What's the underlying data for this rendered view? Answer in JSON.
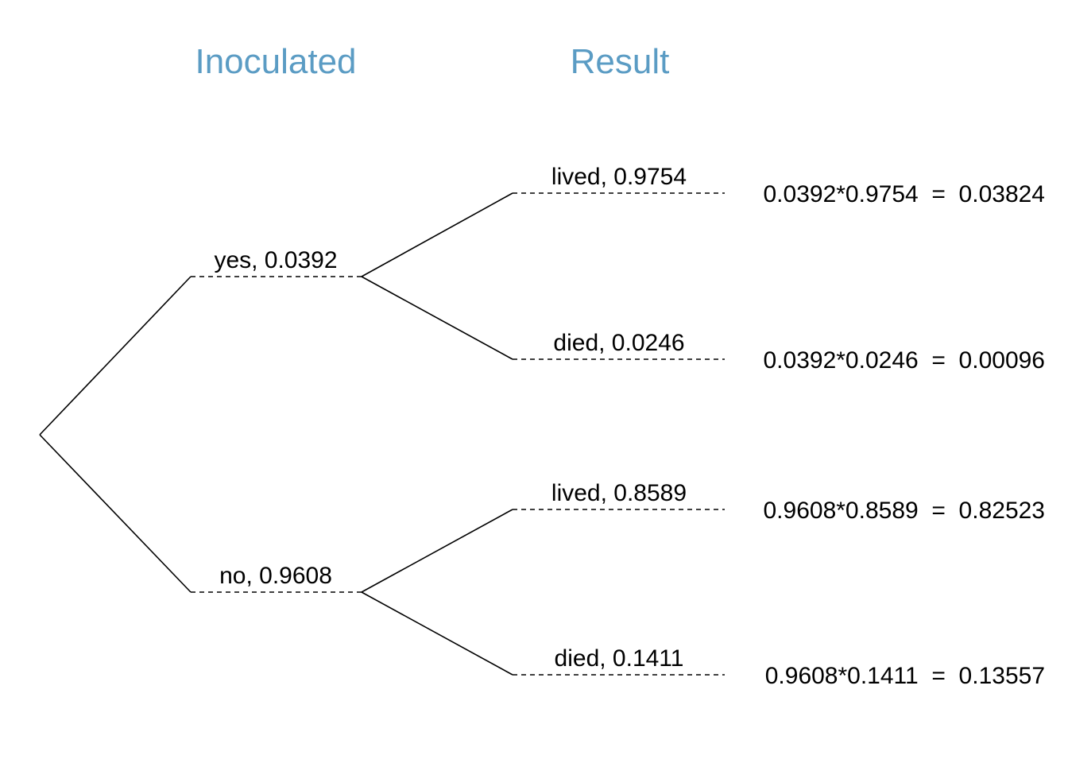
{
  "headers": {
    "first": "Inoculated",
    "second": "Result"
  },
  "colors": {
    "header": "#5b9cc4",
    "lines": "#000000"
  },
  "branches": [
    {
      "name": "yes",
      "prob": "0.0392",
      "label": "yes,  0.0392",
      "outcomes": [
        {
          "name": "lived",
          "prob": "0.9754",
          "label": "lived,  0.9754",
          "result": "0.0392*0.9754  =  0.03824"
        },
        {
          "name": "died",
          "prob": "0.0246",
          "label": "died,  0.0246",
          "result": "0.0392*0.0246  =  0.00096"
        }
      ]
    },
    {
      "name": "no",
      "prob": "0.9608",
      "label": "no,  0.9608",
      "outcomes": [
        {
          "name": "lived",
          "prob": "0.8589",
          "label": "lived,  0.8589",
          "result": "0.9608*0.8589  =  0.82523"
        },
        {
          "name": "died",
          "prob": "0.1411",
          "label": "died,  0.1411",
          "result": "0.9608*0.1411  =  0.13557"
        }
      ]
    }
  ]
}
